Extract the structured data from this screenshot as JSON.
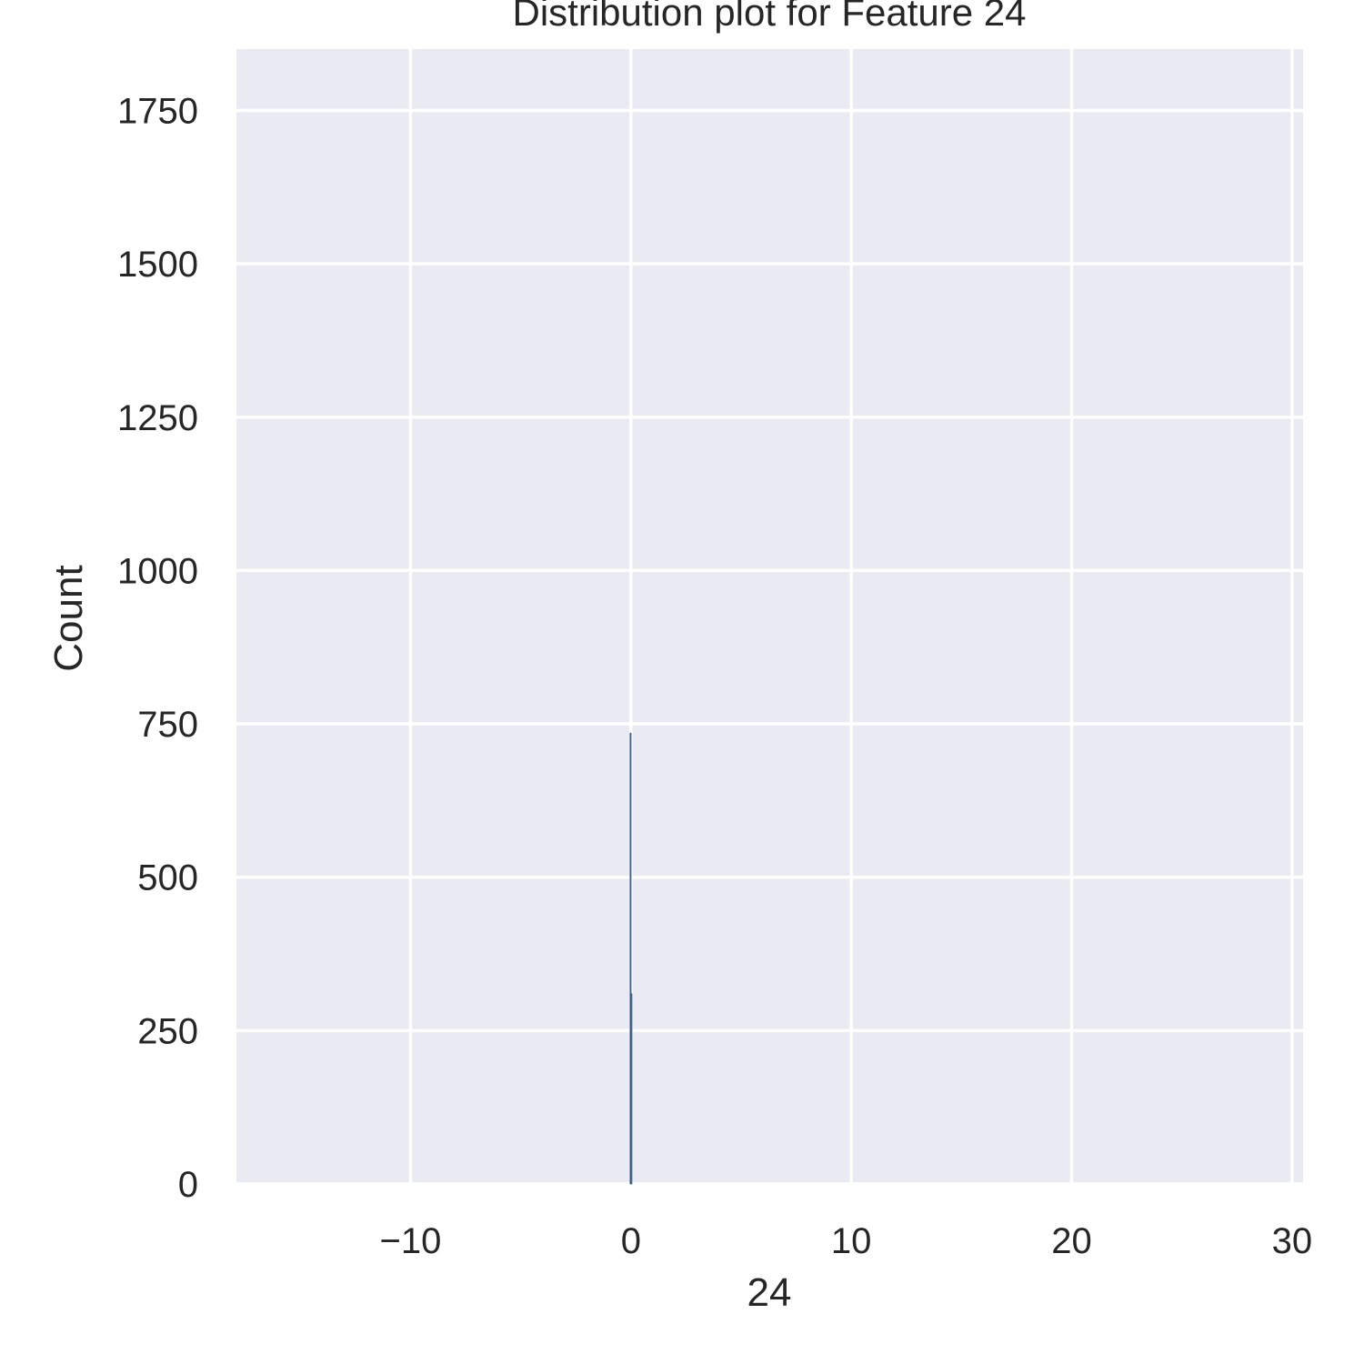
{
  "chart_data": {
    "type": "bar",
    "title": "Distribution plot for Feature 24",
    "xlabel": "24",
    "ylabel": "Count",
    "xlim": [
      -17.9,
      30.5
    ],
    "ylim": [
      0,
      1850
    ],
    "xticks": [
      -10,
      0,
      10,
      20,
      30
    ],
    "xtick_labels": [
      "−10",
      "0",
      "10",
      "20",
      "30"
    ],
    "yticks": [
      0,
      250,
      500,
      750,
      1000,
      1250,
      1500,
      1750
    ],
    "ytick_labels": [
      "0",
      "250",
      "500",
      "750",
      "1000",
      "1250",
      "1500",
      "1750"
    ],
    "grid": true,
    "bins": [
      {
        "x0": -0.04,
        "x1": 0.0,
        "count": 735
      },
      {
        "x0": 0.0,
        "x1": 0.04,
        "count": 310
      }
    ],
    "colors": {
      "plot_background": "#eaeaf2",
      "bar_fill": "#4c72b0",
      "bar_edge": "#2f4f6f",
      "grid": "#ffffff"
    }
  }
}
